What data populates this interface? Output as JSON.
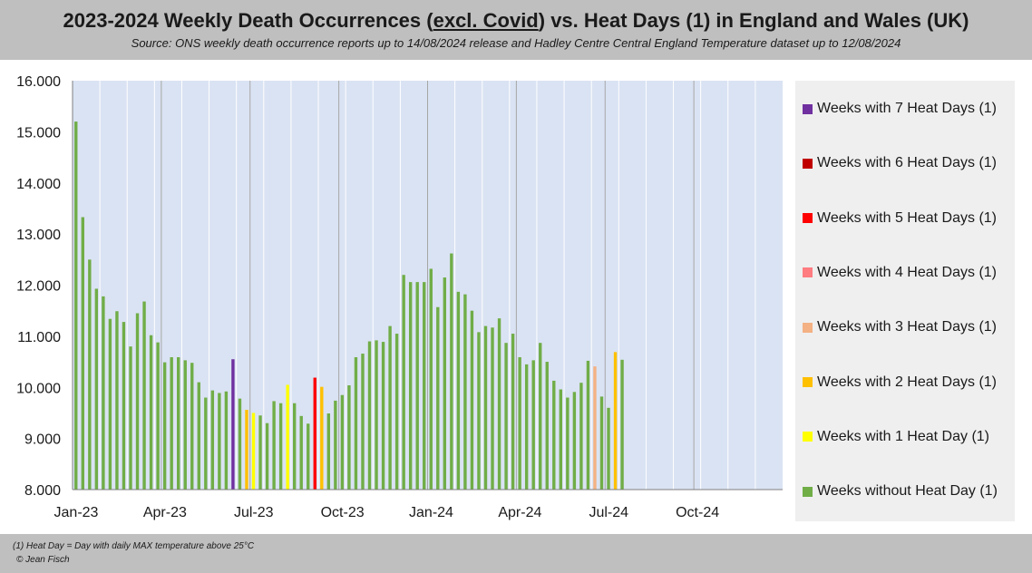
{
  "header": {
    "title_pre": "2023-2024 Weekly Death Occurrences (",
    "title_under": "excl. Covid",
    "title_post": ") vs. Heat Days (1) in England and Wales (UK)",
    "subtitle": "Source: ONS weekly death occurrence reports up to 14/08/2024 release and Hadley Centre Central England Temperature dataset up to 12/08/2024"
  },
  "footer": {
    "note": "(1) Heat Day = Day with daily MAX temperature above 25°C",
    "credit": "© Jean Fisch"
  },
  "colors": {
    "h0": "#70ad47",
    "h1": "#ffff00",
    "h2": "#ffc000",
    "h3": "#f4b183",
    "h4": "#ff7c80",
    "h5": "#ff0000",
    "h6": "#c00000",
    "h7": "#7030a0",
    "plot_bg": "#dae3f3",
    "grid": "#a6a6a6"
  },
  "legend": [
    {
      "heat_days": 7,
      "label": "Weeks with 7 Heat Days (1)"
    },
    {
      "heat_days": 6,
      "label": "Weeks with 6 Heat Days (1)"
    },
    {
      "heat_days": 5,
      "label": "Weeks with 5 Heat Days (1)"
    },
    {
      "heat_days": 4,
      "label": "Weeks with 4 Heat Days (1)"
    },
    {
      "heat_days": 3,
      "label": "Weeks with 3 Heat Days (1)"
    },
    {
      "heat_days": 2,
      "label": "Weeks with 2 Heat Days (1)"
    },
    {
      "heat_days": 1,
      "label": "Weeks with 1 Heat Day (1)"
    },
    {
      "heat_days": 0,
      "label": "Weeks without Heat Day (1)"
    }
  ],
  "chart_data": {
    "type": "bar",
    "title": "2023-2024 Weekly Death Occurrences (excl. Covid) vs. Heat Days (1) in England and Wales (UK)",
    "xlabel": "",
    "ylabel": "",
    "ylim": [
      8000,
      16000
    ],
    "ytick_values": [
      8000,
      9000,
      10000,
      11000,
      12000,
      13000,
      14000,
      15000,
      16000
    ],
    "ytick_labels": [
      "8.000",
      "9.000",
      "10.000",
      "11.000",
      "12.000",
      "13.000",
      "14.000",
      "15.000",
      "16.000"
    ],
    "total_weeks": 104,
    "xtick_labels": [
      {
        "week": 0,
        "label": "Jan-23"
      },
      {
        "week": 13,
        "label": "Apr-23"
      },
      {
        "week": 26,
        "label": "Jul-23"
      },
      {
        "week": 39,
        "label": "Oct-23"
      },
      {
        "week": 52,
        "label": "Jan-24"
      },
      {
        "week": 65,
        "label": "Apr-24"
      },
      {
        "week": 78,
        "label": "Jul-24"
      },
      {
        "week": 91,
        "label": "Oct-24"
      }
    ],
    "series": [
      {
        "name": "Weekly death occurrences (excl. Covid)",
        "values": [
          15200,
          13330,
          12500,
          11930,
          11780,
          11340,
          11490,
          11280,
          10800,
          11450,
          11680,
          11020,
          10880,
          10490,
          10590,
          10590,
          10530,
          10480,
          10100,
          9800,
          9940,
          9890,
          9920,
          10550,
          9780,
          9560,
          9500,
          9450,
          9300,
          9730,
          9690,
          10050,
          9690,
          9440,
          9290,
          10190,
          10010,
          9490,
          9740,
          9850,
          10040,
          10590,
          10660,
          10900,
          10920,
          10890,
          11200,
          11050,
          12200,
          12060,
          12060,
          12060,
          12320,
          11570,
          12150,
          12620,
          11870,
          11820,
          11500,
          11080,
          11200,
          11170,
          11350,
          10870,
          11050,
          10590,
          10450,
          10530,
          10870,
          10500,
          10130,
          9960,
          9800,
          9910,
          10090,
          10520,
          10410,
          9820,
          9600,
          10690,
          10540
        ],
        "heat_days": [
          0,
          0,
          0,
          0,
          0,
          0,
          0,
          0,
          0,
          0,
          0,
          0,
          0,
          0,
          0,
          0,
          0,
          0,
          0,
          0,
          0,
          0,
          0,
          7,
          0,
          2,
          1,
          0,
          0,
          0,
          0,
          1,
          0,
          0,
          0,
          5,
          2,
          0,
          0,
          0,
          0,
          0,
          0,
          0,
          0,
          0,
          0,
          0,
          0,
          0,
          0,
          0,
          0,
          0,
          0,
          0,
          0,
          0,
          0,
          0,
          0,
          0,
          0,
          0,
          0,
          0,
          0,
          0,
          0,
          0,
          0,
          0,
          0,
          0,
          0,
          0,
          3,
          0,
          0,
          2,
          0
        ]
      }
    ]
  }
}
